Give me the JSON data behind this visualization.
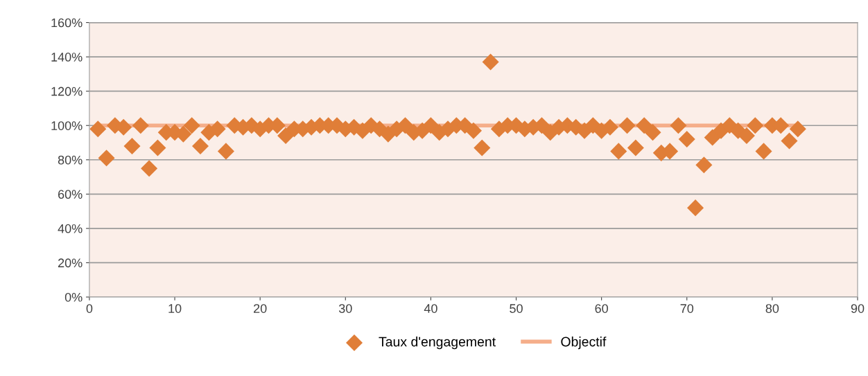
{
  "chart_data": {
    "type": "scatter",
    "xlim": [
      0,
      90
    ],
    "xticks": [
      0,
      10,
      20,
      30,
      40,
      50,
      60,
      70,
      80,
      90
    ],
    "ylim": [
      0,
      160
    ],
    "yticks": [
      {
        "value": 0,
        "label": "0%"
      },
      {
        "value": 20,
        "label": "20%"
      },
      {
        "value": 40,
        "label": "40%"
      },
      {
        "value": 60,
        "label": "60%"
      },
      {
        "value": 80,
        "label": "80%"
      },
      {
        "value": 100,
        "label": "100%"
      },
      {
        "value": 120,
        "label": "120%"
      },
      {
        "value": 140,
        "label": "140%"
      },
      {
        "value": 160,
        "label": "160%"
      }
    ],
    "grid": "y",
    "legend": "bottom",
    "series": [
      {
        "name": "Taux d'engagement",
        "marker": "diamond",
        "color": "#e07e38",
        "x": [
          1,
          2,
          3,
          4,
          5,
          6,
          7,
          8,
          9,
          10,
          11,
          12,
          13,
          14,
          15,
          16,
          17,
          18,
          19,
          20,
          21,
          22,
          23,
          24,
          25,
          26,
          27,
          28,
          29,
          30,
          31,
          32,
          33,
          34,
          35,
          36,
          37,
          38,
          39,
          40,
          41,
          42,
          43,
          44,
          45,
          46,
          47,
          48,
          49,
          50,
          51,
          52,
          53,
          54,
          55,
          56,
          57,
          58,
          59,
          60,
          61,
          62,
          63,
          64,
          65,
          66,
          67,
          68,
          69,
          70,
          71,
          72,
          73,
          74,
          75,
          76,
          77,
          78,
          79,
          80,
          81,
          82,
          83
        ],
        "values": [
          98,
          81,
          100,
          99,
          88,
          100,
          75,
          87,
          96,
          96,
          95,
          100,
          88,
          96,
          98,
          85,
          100,
          99,
          100,
          98,
          100,
          100,
          94,
          98,
          98,
          99,
          100,
          100,
          100,
          98,
          99,
          97,
          100,
          98,
          95,
          98,
          100,
          96,
          97,
          100,
          96,
          98,
          100,
          100,
          97,
          87,
          137,
          98,
          100,
          100,
          98,
          99,
          100,
          96,
          99,
          100,
          99,
          97,
          100,
          97,
          99,
          85,
          100,
          87,
          100,
          96,
          84,
          85,
          100,
          92,
          52,
          77,
          93,
          97,
          100,
          97,
          94,
          100,
          85,
          100,
          100,
          91,
          98
        ]
      },
      {
        "name": "Objectif",
        "type": "line",
        "marker": "none",
        "color": "#f5ae8a",
        "x": [
          1,
          83
        ],
        "values": [
          100,
          100
        ]
      }
    ]
  }
}
